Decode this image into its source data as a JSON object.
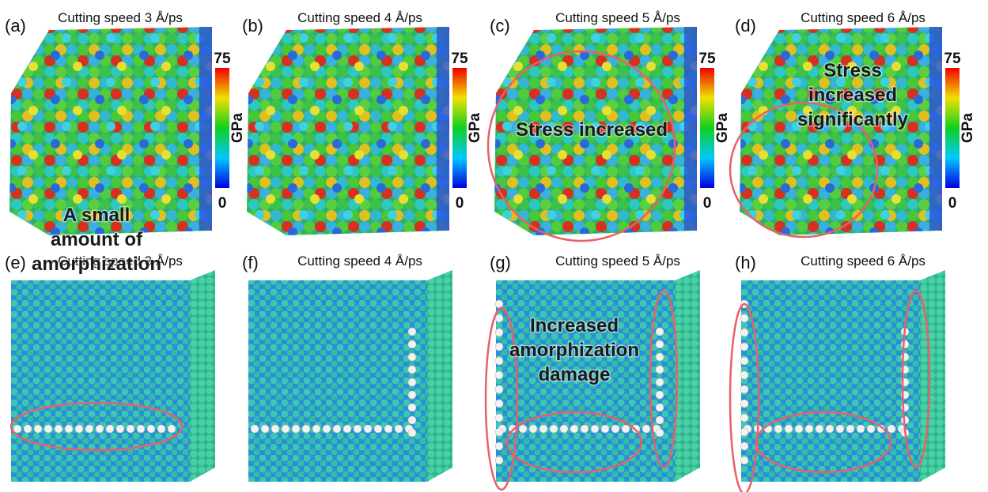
{
  "panels": [
    {
      "label": "(a)",
      "title": "Cutting speed  3 Å/ps",
      "colorbar": {
        "max": "75",
        "min": "0",
        "unit": "GPa"
      }
    },
    {
      "label": "(b)",
      "title": "Cutting speed  4 Å/ps",
      "colorbar": {
        "max": "75",
        "min": "0",
        "unit": "GPa"
      }
    },
    {
      "label": "(c)",
      "title": "Cutting speed  5 Å/ps",
      "colorbar": {
        "max": "75",
        "min": "0",
        "unit": "GPa"
      },
      "annotation": [
        "Stress increased"
      ]
    },
    {
      "label": "(d)",
      "title": "Cutting speed  6 Å/ps",
      "colorbar": {
        "max": "75",
        "min": "0",
        "unit": "GPa"
      },
      "annotation": [
        "Stress",
        "increased",
        "significantly"
      ]
    },
    {
      "label": "(e)",
      "title": "Cutting speed  3 Å/ps",
      "annotation": [
        "A small",
        "amount of",
        "amorphization"
      ]
    },
    {
      "label": "(f)",
      "title": "Cutting speed  4 Å/ps"
    },
    {
      "label": "(g)",
      "title": "Cutting speed  5 Å/ps",
      "annotation": [
        "Increased",
        "amorphization",
        "damage"
      ]
    },
    {
      "label": "(h)",
      "title": "Cutting speed  6 Å/ps"
    }
  ]
}
